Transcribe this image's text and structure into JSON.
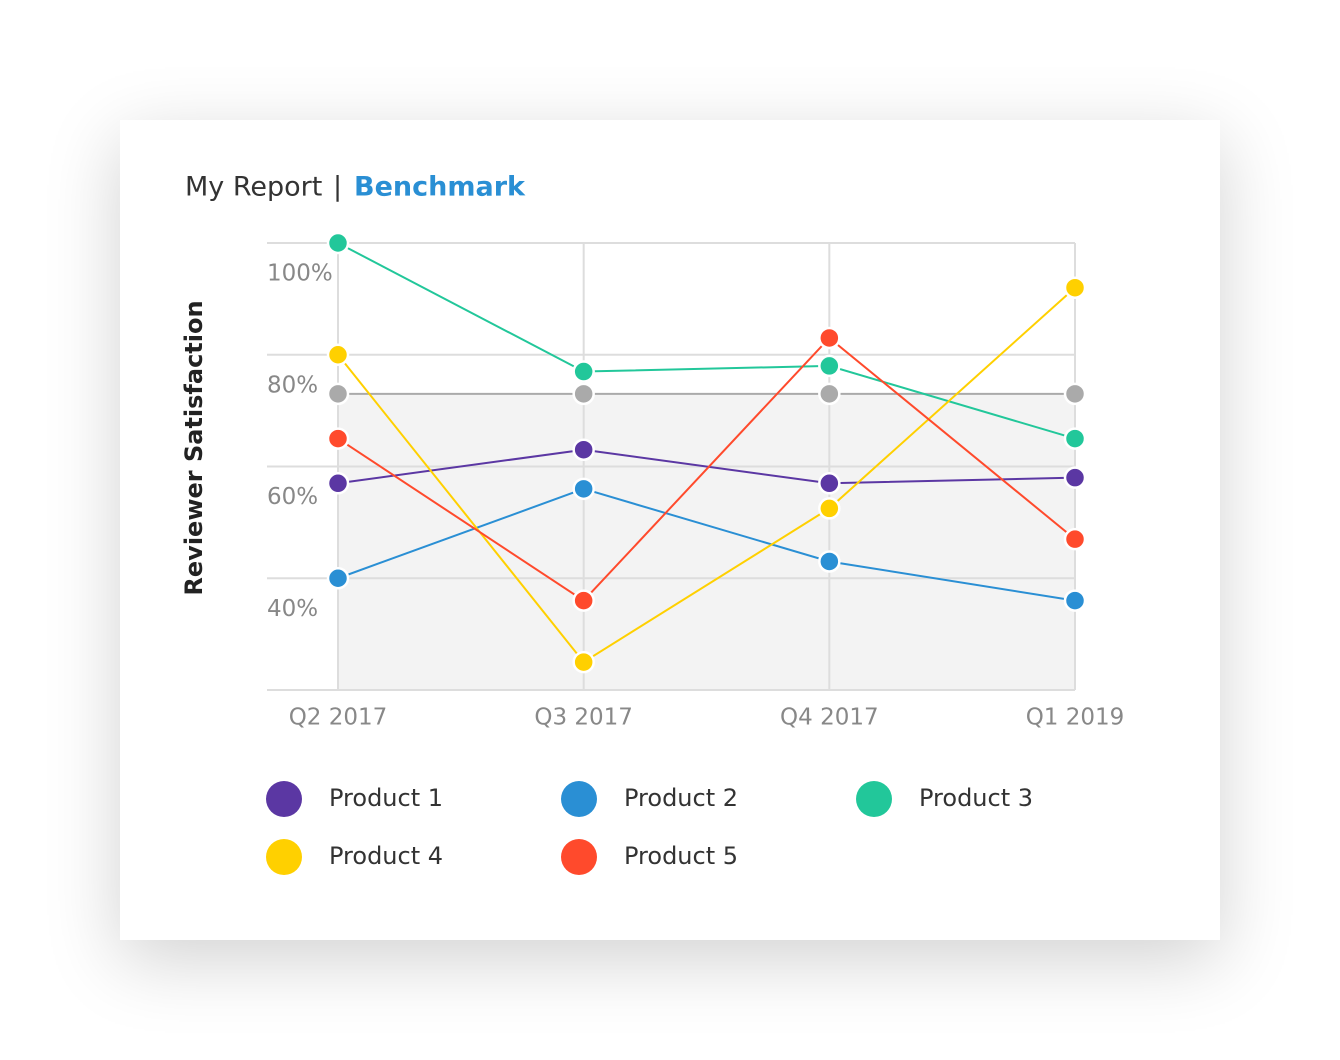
{
  "chart_data": {
    "type": "line",
    "title": "My Report",
    "title_separator": "|",
    "subtitle": "Benchmark",
    "y_label": "Reviewer Satisfaction",
    "categories": [
      "Q2 2017",
      "Q3 2017",
      "Q4 2017",
      "Q1 2019"
    ],
    "ylim": [
      20,
      100
    ],
    "yticks": [
      {
        "value": 40,
        "label": "40%"
      },
      {
        "value": 60,
        "label": "60%"
      },
      {
        "value": 80,
        "label": "80%"
      },
      {
        "value": 100,
        "label": "100%"
      }
    ],
    "grid": true,
    "benchmark": {
      "color": "#aaaaaa",
      "values": [
        73,
        73,
        73,
        73
      ]
    },
    "series": [
      {
        "name": "Product 1",
        "color": "#5b37a3",
        "values": [
          57,
          63,
          57,
          58
        ]
      },
      {
        "name": "Product 2",
        "color": "#2a8fd4",
        "values": [
          40,
          56,
          43,
          36
        ]
      },
      {
        "name": "Product 3",
        "color": "#22c79a",
        "values": [
          100,
          77,
          78,
          65
        ]
      },
      {
        "name": "Product 4",
        "color": "#ffd000",
        "values": [
          80,
          25,
          52.5,
          92
        ]
      },
      {
        "name": "Product 5",
        "color": "#ff4a2c",
        "values": [
          65,
          36,
          83,
          47
        ]
      }
    ]
  }
}
